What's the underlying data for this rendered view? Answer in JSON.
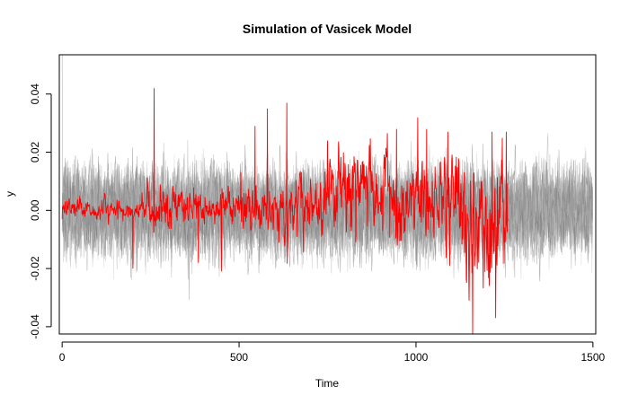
{
  "chart_data": {
    "type": "line",
    "title": "Simulation of Vasicek Model",
    "xlabel": "Time",
    "ylabel": "y",
    "xlim": [
      -8,
      1508
    ],
    "ylim": [
      -0.0425,
      0.0535
    ],
    "x_ticks": [
      0,
      500,
      1000,
      1500
    ],
    "y_ticks": [
      -0.04,
      -0.02,
      0.0,
      0.02,
      0.04
    ],
    "x_tick_labels": [
      "0",
      "500",
      "1000",
      "1500"
    ],
    "y_tick_labels": [
      "-0.04",
      "-0.02",
      "0.00",
      "0.02",
      "0.04"
    ],
    "grid": false,
    "legend": "none",
    "series": [
      {
        "role": "simulated-paths",
        "path_count": 20,
        "length": 1500,
        "color": "#8c8c8c",
        "approx_range": [
          -0.022,
          0.022
        ],
        "initial_spike_peak": 0.0535
      },
      {
        "role": "observed-path",
        "length": 1260,
        "color": "#ff0000",
        "key_points": [
          {
            "x": 0,
            "y": -0.003
          },
          {
            "x": 200,
            "y": -0.02
          },
          {
            "x": 260,
            "y": 0.042
          },
          {
            "x": 385,
            "y": -0.018
          },
          {
            "x": 450,
            "y": -0.021
          },
          {
            "x": 505,
            "y": 0.013
          },
          {
            "x": 545,
            "y": 0.029
          },
          {
            "x": 580,
            "y": 0.035
          },
          {
            "x": 635,
            "y": 0.037
          },
          {
            "x": 750,
            "y": 0.024
          },
          {
            "x": 850,
            "y": 0.017
          },
          {
            "x": 945,
            "y": 0.028
          },
          {
            "x": 1005,
            "y": 0.032
          },
          {
            "x": 1030,
            "y": 0.028
          },
          {
            "x": 1090,
            "y": 0.027
          },
          {
            "x": 1160,
            "y": -0.043
          },
          {
            "x": 1215,
            "y": 0.027
          },
          {
            "x": 1225,
            "y": -0.037
          },
          {
            "x": 1255,
            "y": 0.027
          }
        ]
      }
    ]
  }
}
